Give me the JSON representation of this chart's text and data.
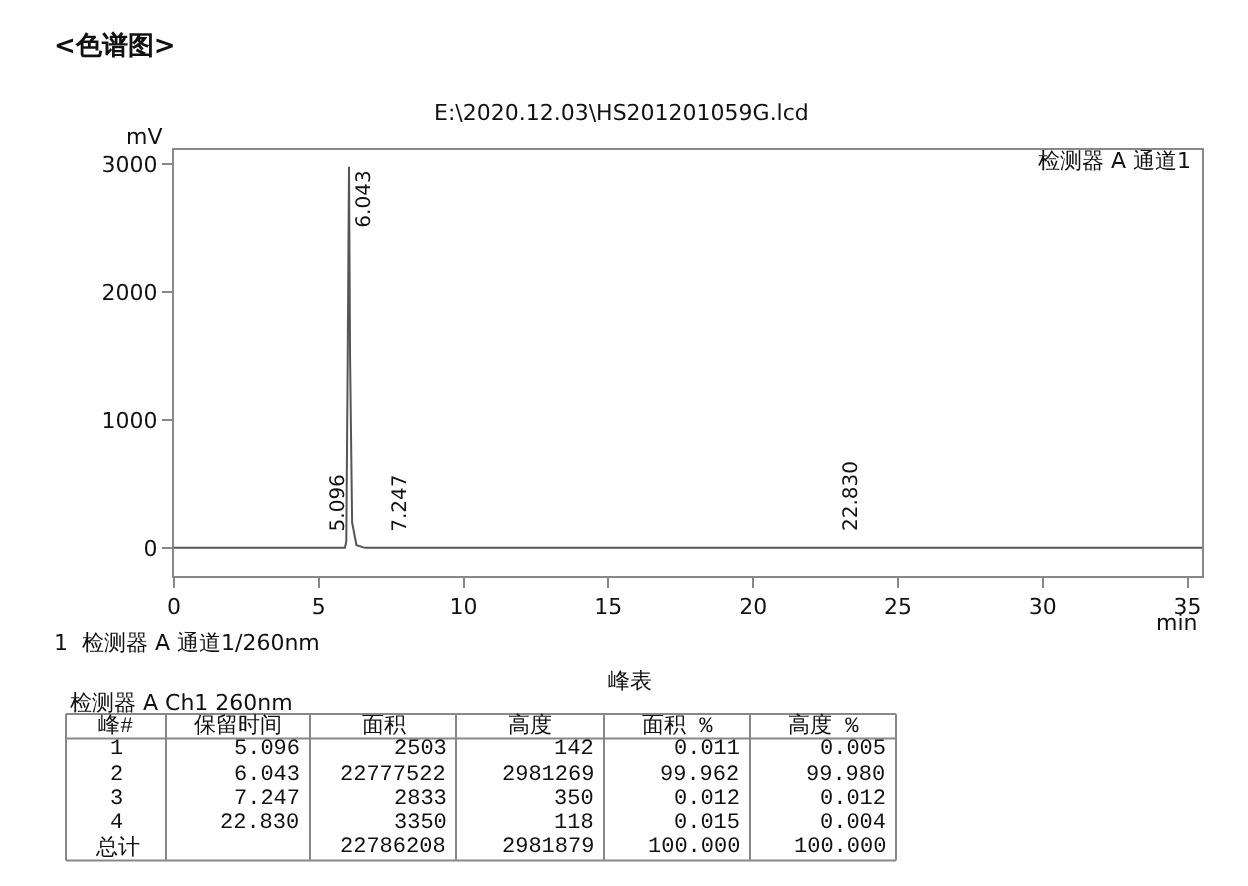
{
  "chart_data": {
    "type": "line",
    "title": "E:\\2020.12.03\\HS201201059G.lcd",
    "xlabel": "min",
    "ylabel": "mV",
    "x": [
      0,
      4.9,
      5.096,
      5.9,
      5.95,
      6.0,
      6.043,
      6.08,
      6.15,
      6.3,
      6.6,
      7.247,
      22.83,
      35.5
    ],
    "series": [
      {
        "color": "#555555",
        "values": [
          0,
          0,
          0,
          0,
          50,
          1500,
          2980,
          1500,
          200,
          20,
          0,
          0,
          0,
          0
        ]
      }
    ],
    "xlim": [
      0,
      35.5
    ],
    "xticks": [
      0,
      5,
      10,
      15,
      20,
      25,
      30,
      35
    ],
    "ylim": [
      -220,
      3110
    ],
    "yticks": [
      0,
      1000,
      2000,
      3000
    ],
    "marker": "none",
    "line_style": "solid",
    "annotations": [
      "<色谱图>",
      "检测器 A 通道1",
      "1  检测器 A 通道1/260nm",
      "峰表",
      "检测器 A Ch1 260nm",
      {
        "text": "5.096",
        "x": 5.096,
        "y": 0
      },
      {
        "text": "6.043",
        "x": 6.043,
        "y": 2980
      },
      {
        "text": "7.247",
        "x": 7.247,
        "y": 0
      },
      {
        "text": "22.830",
        "x": 22.83,
        "y": 0
      },
      "峰#",
      "保留时间",
      "面积",
      "高度",
      "面积 %",
      "高度 %",
      "1",
      "5.096",
      "2503",
      "142",
      "0.011",
      "0.005",
      "2",
      "6.043",
      "22777522",
      "2981269",
      "99.962",
      "99.980",
      "3",
      "7.247",
      "2833",
      "350",
      "0.012",
      "0.012",
      "4",
      "22.830",
      "3350",
      "118",
      "0.015",
      "0.004",
      "总计",
      null,
      "22786208",
      "2981879",
      "100.000",
      "100.000"
    ]
  }
}
